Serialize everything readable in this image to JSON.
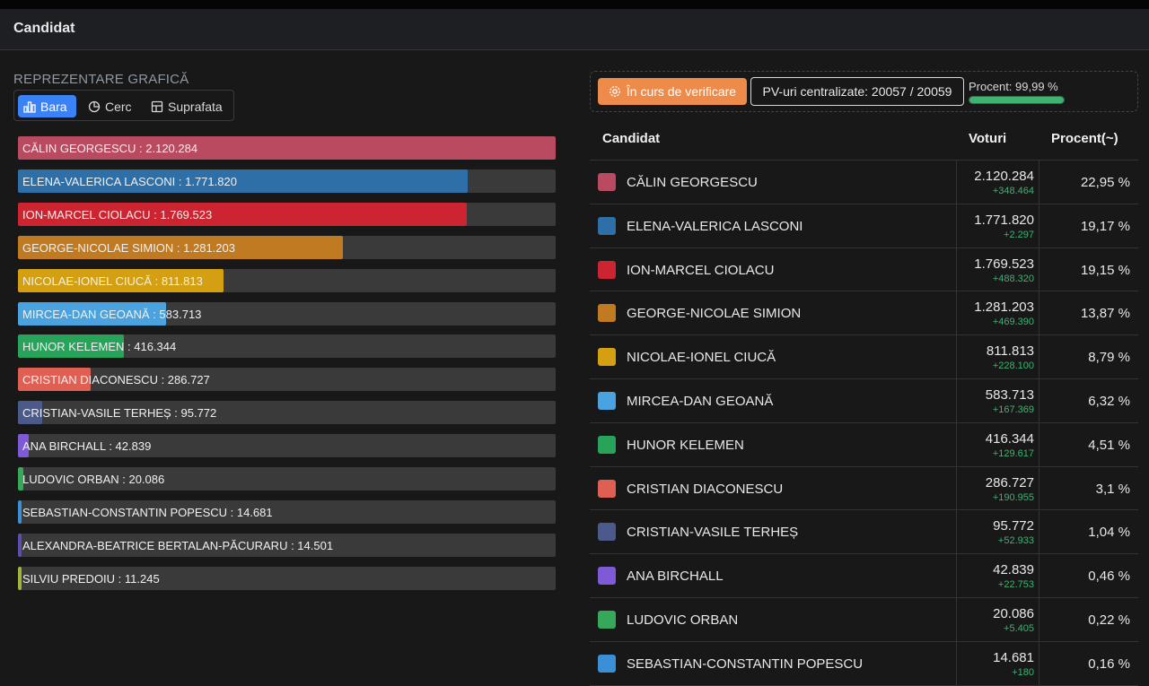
{
  "header": {
    "title": "Candidat"
  },
  "chart_section": {
    "label": "REPREZENTARE GRAFICĂ",
    "tabs": [
      {
        "label": "Bara",
        "icon": "bar-chart-icon",
        "active": true
      },
      {
        "label": "Cerc",
        "icon": "pie-chart-icon",
        "active": false
      },
      {
        "label": "Suprafata",
        "icon": "area-chart-icon",
        "active": false
      }
    ]
  },
  "status": {
    "verify_label": "În curs de verificare",
    "pv_label": "PV-uri centralizate: 20057 / 20059",
    "percent_label": "Procent: 99,99 %",
    "percent_value": 99.99
  },
  "table": {
    "headers": {
      "candidate": "Candidat",
      "votes": "Voturi",
      "percent": "Procent(~)"
    }
  },
  "candidates": [
    {
      "name": "CĂLIN GEORGESCU",
      "bar_label": "CĂLIN GEORGESCU : 2.120.284",
      "votes": 2120284,
      "votes_text": "2.120.284",
      "delta": "+348.464",
      "percent": "22,95 %",
      "color": "#b94a5f"
    },
    {
      "name": "ELENA-VALERICA LASCONI",
      "bar_label": "ELENA-VALERICA LASCONI : 1.771.820",
      "votes": 1771820,
      "votes_text": "1.771.820",
      "delta": "+2.297",
      "percent": "19,17 %",
      "color": "#2f6fa8"
    },
    {
      "name": "ION-MARCEL CIOLACU",
      "bar_label": "ION-MARCEL CIOLACU : 1.769.523",
      "votes": 1769523,
      "votes_text": "1.769.523",
      "delta": "+488.320",
      "percent": "19,15 %",
      "color": "#cc2431"
    },
    {
      "name": "GEORGE-NICOLAE SIMION",
      "bar_label": "GEORGE-NICOLAE SIMION : 1.281.203",
      "votes": 1281203,
      "votes_text": "1.281.203",
      "delta": "+469.390",
      "percent": "13,87 %",
      "color": "#c07a22"
    },
    {
      "name": "NICOLAE-IONEL CIUCĂ",
      "bar_label": "NICOLAE-IONEL CIUCĂ : 811.813",
      "votes": 811813,
      "votes_text": "811.813",
      "delta": "+228.100",
      "percent": "8,79 %",
      "color": "#d4a012"
    },
    {
      "name": "MIRCEA-DAN GEOANĂ",
      "bar_label": "MIRCEA-DAN GEOANĂ : 583.713",
      "votes": 583713,
      "votes_text": "583.713",
      "delta": "+167.369",
      "percent": "6,32 %",
      "color": "#4aa3df"
    },
    {
      "name": "HUNOR KELEMEN",
      "bar_label": "HUNOR KELEMEN : 416.344",
      "votes": 416344,
      "votes_text": "416.344",
      "delta": "+129.617",
      "percent": "4,51 %",
      "color": "#27a35a"
    },
    {
      "name": "CRISTIAN DIACONESCU",
      "bar_label": "CRISTIAN DIACONESCU : 286.727",
      "votes": 286727,
      "votes_text": "286.727",
      "delta": "+190.955",
      "percent": "3,1 %",
      "color": "#df5f52"
    },
    {
      "name": "CRISTIAN-VASILE TERHEȘ",
      "bar_label": "CRISTIAN-VASILE TERHEȘ : 95.772",
      "votes": 95772,
      "votes_text": "95.772",
      "delta": "+52.933",
      "percent": "1,04 %",
      "color": "#4b5a8a"
    },
    {
      "name": "ANA BIRCHALL",
      "bar_label": "ANA BIRCHALL : 42.839",
      "votes": 42839,
      "votes_text": "42.839",
      "delta": "+22.753",
      "percent": "0,46 %",
      "color": "#7f5ad6"
    },
    {
      "name": "LUDOVIC ORBAN",
      "bar_label": "LUDOVIC ORBAN : 20.086",
      "votes": 20086,
      "votes_text": "20.086",
      "delta": "+5.405",
      "percent": "0,22 %",
      "color": "#35a85a"
    },
    {
      "name": "SEBASTIAN-CONSTANTIN POPESCU",
      "bar_label": "SEBASTIAN-CONSTANTIN POPESCU : 14.681",
      "votes": 14681,
      "votes_text": "14.681",
      "delta": "+180",
      "percent": "0,16 %",
      "color": "#3b8fd6"
    },
    {
      "name": "ALEXANDRA-BEATRICE BERTALAN-PĂCURARU",
      "bar_label": "ALEXANDRA-BEATRICE BERTALAN-PĂCURARU : 14.501",
      "votes": 14501,
      "votes_text": "14.501",
      "delta": "",
      "percent": "",
      "color": "#5a4fb0"
    },
    {
      "name": "SILVIU PREDOIU",
      "bar_label": "SILVIU PREDOIU : 11.245",
      "votes": 11245,
      "votes_text": "11.245",
      "delta": "",
      "percent": "",
      "color": "#a3b43a"
    }
  ],
  "chart_data": {
    "type": "bar",
    "categories": [
      "CĂLIN GEORGESCU",
      "ELENA-VALERICA LASCONI",
      "ION-MARCEL CIOLACU",
      "GEORGE-NICOLAE SIMION",
      "NICOLAE-IONEL CIUCĂ",
      "MIRCEA-DAN GEOANĂ",
      "HUNOR KELEMEN",
      "CRISTIAN DIACONESCU",
      "CRISTIAN-VASILE TERHEȘ",
      "ANA BIRCHALL",
      "LUDOVIC ORBAN",
      "SEBASTIAN-CONSTANTIN POPESCU",
      "ALEXANDRA-BEATRICE BERTALAN-PĂCURARU",
      "SILVIU PREDOIU"
    ],
    "values": [
      2120284,
      1771820,
      1769523,
      1281203,
      811813,
      583713,
      416344,
      286727,
      95772,
      42839,
      20086,
      14681,
      14501,
      11245
    ],
    "orientation": "horizontal",
    "xlim": [
      0,
      2120284
    ]
  }
}
